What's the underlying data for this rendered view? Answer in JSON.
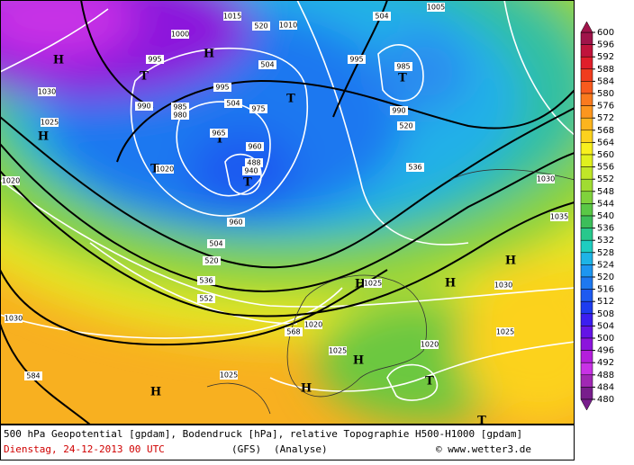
{
  "map": {
    "pressure_systems": [
      "H",
      "H",
      "T",
      "H",
      "T",
      "T",
      "T",
      "T",
      "T",
      "H",
      "H",
      "H",
      "H",
      "H",
      "H",
      "T",
      "T"
    ],
    "contour_labels": [
      1015,
      520,
      1010,
      504,
      1005,
      1000,
      995,
      995,
      504,
      990,
      985,
      980,
      504,
      975,
      965,
      960,
      488,
      940,
      1020,
      960,
      504,
      520,
      536,
      552,
      568,
      584,
      536,
      520,
      1030,
      1035,
      1030,
      1025,
      1025,
      1020,
      1020,
      1025,
      1025,
      1030,
      1030,
      1025,
      1020,
      990,
      985,
      995
    ]
  },
  "colorbar": {
    "ticks": [
      600,
      596,
      592,
      588,
      584,
      580,
      576,
      572,
      568,
      564,
      560,
      556,
      552,
      548,
      544,
      540,
      536,
      532,
      528,
      524,
      520,
      516,
      512,
      508,
      504,
      500,
      496,
      492,
      488,
      484,
      480
    ],
    "colors": [
      "#a0144a",
      "#c0143c",
      "#e01e2a",
      "#f03c1e",
      "#f85a1e",
      "#fa7a1e",
      "#fc961e",
      "#fcb41e",
      "#fcd21e",
      "#f8f01e",
      "#e0f01e",
      "#c0e628",
      "#a0dc32",
      "#80d23c",
      "#5ac846",
      "#3cbe5a",
      "#28c88c",
      "#1ecdc0",
      "#1eb4e6",
      "#1e96f0",
      "#1e78f0",
      "#1e5af0",
      "#1e3cf0",
      "#3c1ef0",
      "#6414e6",
      "#8c14dc",
      "#b41edc",
      "#c832e6",
      "#a028b4",
      "#781e8c"
    ]
  },
  "footer": {
    "description": "500 hPa Geopotential [gpdam], Bodendruck [hPa], relative Topographie H500-H1000 [gpdam]",
    "date": "Dienstag, 24-12-2013  00 UTC",
    "model": "(GFS)",
    "run": "(Analyse)",
    "credit": "© www.wetter3.de"
  }
}
